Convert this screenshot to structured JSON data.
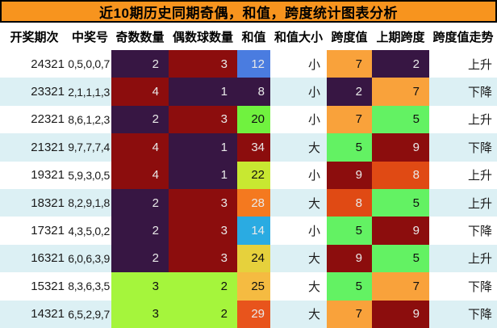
{
  "page_title": "近10期历史同期奇偶，和值，跨度统计图表分析",
  "colors": {
    "title_bg": "#f7941e",
    "title_text": "#000000",
    "row_bg": "#ffffff",
    "row_alt_bg": "#dcf0f4",
    "dark_cell_text": "#e9e9e9",
    "light_cell_text": "#101010"
  },
  "chart_data": {
    "type": "table",
    "title": "近10期历史同期奇偶，和值，跨度统计图表分析",
    "columns": [
      "开奖期次",
      "中奖号",
      "奇数数量",
      "偶数球数量",
      "和值",
      "和值大小",
      "跨度值",
      "上期跨度",
      "跨度值走势"
    ],
    "rows": [
      {
        "period": "24321",
        "winning_numbers": "0,5,0,0,7",
        "odd_count": {
          "value": "2",
          "bg": "#371643"
        },
        "even_count": {
          "value": "3",
          "bg": "#8c0d0d"
        },
        "sum": {
          "value": "12",
          "bg": "#4a7ce0"
        },
        "sum_size": "小",
        "span": {
          "value": "7",
          "bg": "#f9a23b"
        },
        "prev_span": {
          "value": "2",
          "bg": "#371643"
        },
        "span_trend": "上升"
      },
      {
        "period": "23321",
        "winning_numbers": "2,1,1,1,3",
        "odd_count": {
          "value": "4",
          "bg": "#8c0d0d"
        },
        "even_count": {
          "value": "1",
          "bg": "#371643"
        },
        "sum": {
          "value": "8",
          "bg": "#371643"
        },
        "sum_size": "小",
        "span": {
          "value": "2",
          "bg": "#371643"
        },
        "prev_span": {
          "value": "7",
          "bg": "#f9a23b"
        },
        "span_trend": "下降"
      },
      {
        "period": "22321",
        "winning_numbers": "8,6,1,2,3",
        "odd_count": {
          "value": "2",
          "bg": "#371643"
        },
        "even_count": {
          "value": "3",
          "bg": "#8c0d0d"
        },
        "sum": {
          "value": "20",
          "bg": "#70f23f"
        },
        "sum_size": "小",
        "span": {
          "value": "7",
          "bg": "#f9a23b"
        },
        "prev_span": {
          "value": "5",
          "bg": "#63f263"
        },
        "span_trend": "上升"
      },
      {
        "period": "21321",
        "winning_numbers": "9,7,7,7,4",
        "odd_count": {
          "value": "4",
          "bg": "#8c0d0d"
        },
        "even_count": {
          "value": "1",
          "bg": "#371643"
        },
        "sum": {
          "value": "34",
          "bg": "#8c0d0d"
        },
        "sum_size": "大",
        "span": {
          "value": "5",
          "bg": "#63f263"
        },
        "prev_span": {
          "value": "9",
          "bg": "#8c0d0d"
        },
        "span_trend": "下降"
      },
      {
        "period": "19321",
        "winning_numbers": "5,9,3,0,5",
        "odd_count": {
          "value": "4",
          "bg": "#8c0d0d"
        },
        "even_count": {
          "value": "1",
          "bg": "#371643"
        },
        "sum": {
          "value": "22",
          "bg": "#c8e831"
        },
        "sum_size": "小",
        "span": {
          "value": "9",
          "bg": "#8c0d0d"
        },
        "prev_span": {
          "value": "8",
          "bg": "#e04a14"
        },
        "span_trend": "上升"
      },
      {
        "period": "18321",
        "winning_numbers": "8,2,9,1,8",
        "odd_count": {
          "value": "2",
          "bg": "#371643"
        },
        "even_count": {
          "value": "3",
          "bg": "#8c0d0d"
        },
        "sum": {
          "value": "28",
          "bg": "#f4791f"
        },
        "sum_size": "大",
        "span": {
          "value": "8",
          "bg": "#e04a14"
        },
        "prev_span": {
          "value": "5",
          "bg": "#63f263"
        },
        "span_trend": "上升"
      },
      {
        "period": "17321",
        "winning_numbers": "4,3,5,0,2",
        "odd_count": {
          "value": "2",
          "bg": "#371643"
        },
        "even_count": {
          "value": "3",
          "bg": "#8c0d0d"
        },
        "sum": {
          "value": "14",
          "bg": "#2aabe2"
        },
        "sum_size": "小",
        "span": {
          "value": "5",
          "bg": "#63f263"
        },
        "prev_span": {
          "value": "9",
          "bg": "#8c0d0d"
        },
        "span_trend": "下降"
      },
      {
        "period": "16321",
        "winning_numbers": "6,0,6,3,9",
        "odd_count": {
          "value": "2",
          "bg": "#371643"
        },
        "even_count": {
          "value": "3",
          "bg": "#8c0d0d"
        },
        "sum": {
          "value": "24",
          "bg": "#e6d13c"
        },
        "sum_size": "大",
        "span": {
          "value": "9",
          "bg": "#8c0d0d"
        },
        "prev_span": {
          "value": "5",
          "bg": "#63f263"
        },
        "span_trend": "上升"
      },
      {
        "period": "15321",
        "winning_numbers": "8,3,6,3,5",
        "odd_count": {
          "value": "3",
          "bg": "#a5f53c"
        },
        "even_count": {
          "value": "2",
          "bg": "#a5f53c"
        },
        "sum": {
          "value": "25",
          "bg": "#f5bb41"
        },
        "sum_size": "大",
        "span": {
          "value": "5",
          "bg": "#63f263"
        },
        "prev_span": {
          "value": "7",
          "bg": "#f9a23b"
        },
        "span_trend": "下降"
      },
      {
        "period": "14321",
        "winning_numbers": "6,5,2,9,7",
        "odd_count": {
          "value": "3",
          "bg": "#a5f53c"
        },
        "even_count": {
          "value": "2",
          "bg": "#a5f53c"
        },
        "sum": {
          "value": "29",
          "bg": "#e8541c"
        },
        "sum_size": "大",
        "span": {
          "value": "7",
          "bg": "#f9a23b"
        },
        "prev_span": {
          "value": "9",
          "bg": "#8c0d0d"
        },
        "span_trend": "下降"
      }
    ]
  }
}
